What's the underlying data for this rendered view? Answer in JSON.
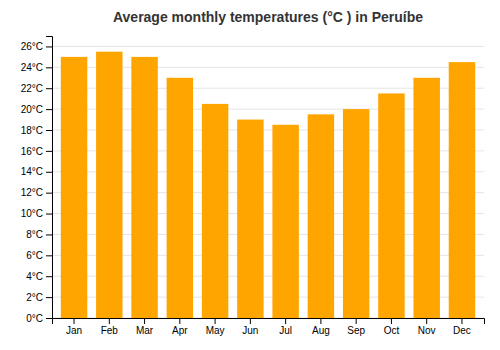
{
  "chart_data": {
    "type": "bar",
    "title": "Average monthly temperatures (°C ) in Peruíbe",
    "categories": [
      "Jan",
      "Feb",
      "Mar",
      "Apr",
      "May",
      "Jun",
      "Jul",
      "Aug",
      "Sep",
      "Oct",
      "Nov",
      "Dec"
    ],
    "values": [
      25.0,
      25.5,
      25.0,
      23.0,
      20.5,
      19.0,
      18.5,
      19.5,
      20.0,
      21.5,
      23.0,
      24.5
    ],
    "color": "#FFA500",
    "ylim": [
      0,
      27
    ],
    "yticks": [
      {
        "value": 0,
        "label": "0°C"
      },
      {
        "value": 2,
        "label": "2°C"
      },
      {
        "value": 4,
        "label": "4°C"
      },
      {
        "value": 6,
        "label": "6°C"
      },
      {
        "value": 8,
        "label": "8°C"
      },
      {
        "value": 10,
        "label": "10°C"
      },
      {
        "value": 12,
        "label": "12°C"
      },
      {
        "value": 14,
        "label": "14°C"
      },
      {
        "value": 16,
        "label": "16°C"
      },
      {
        "value": 18,
        "label": "18°C"
      },
      {
        "value": 20,
        "label": "20°C"
      },
      {
        "value": 22,
        "label": "22°C"
      },
      {
        "value": 24,
        "label": "24°C"
      },
      {
        "value": 26,
        "label": "26°C"
      }
    ],
    "grid": true
  }
}
